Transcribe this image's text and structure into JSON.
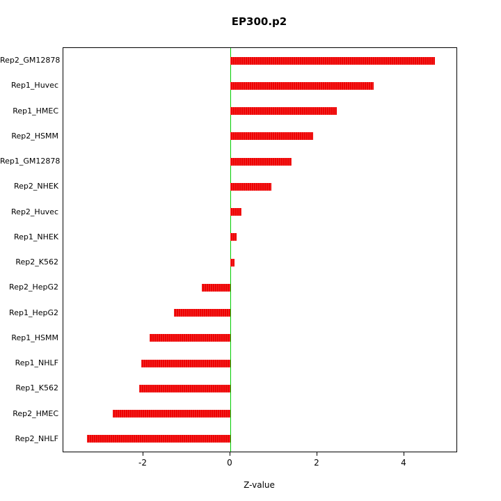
{
  "chart_data": {
    "type": "bar",
    "orientation": "horizontal",
    "title": "EP300.p2",
    "xlabel": "Z-value",
    "ylabel": "",
    "categories": [
      "Rep2_GM12878",
      "Rep1_Huvec",
      "Rep1_HMEC",
      "Rep2_HSMM",
      "Rep1_GM12878",
      "Rep2_NHEK",
      "Rep2_Huvec",
      "Rep1_NHEK",
      "Rep2_K562",
      "Rep2_HepG2",
      "Rep1_HepG2",
      "Rep1_HSMM",
      "Rep1_NHLF",
      "Rep1_K562",
      "Rep2_HMEC",
      "Rep2_NHLF"
    ],
    "values": [
      4.7,
      3.3,
      2.45,
      1.9,
      1.4,
      0.95,
      0.25,
      0.15,
      0.1,
      -0.65,
      -1.3,
      -1.85,
      -2.05,
      -2.1,
      -2.7,
      -3.3
    ],
    "xlim": [
      -3.84,
      5.2
    ],
    "xticks": [
      -2,
      0,
      2,
      4
    ],
    "bar_color": "#ee0000",
    "zero_line_color": "#00cc00",
    "grid": false,
    "legend": "none"
  }
}
